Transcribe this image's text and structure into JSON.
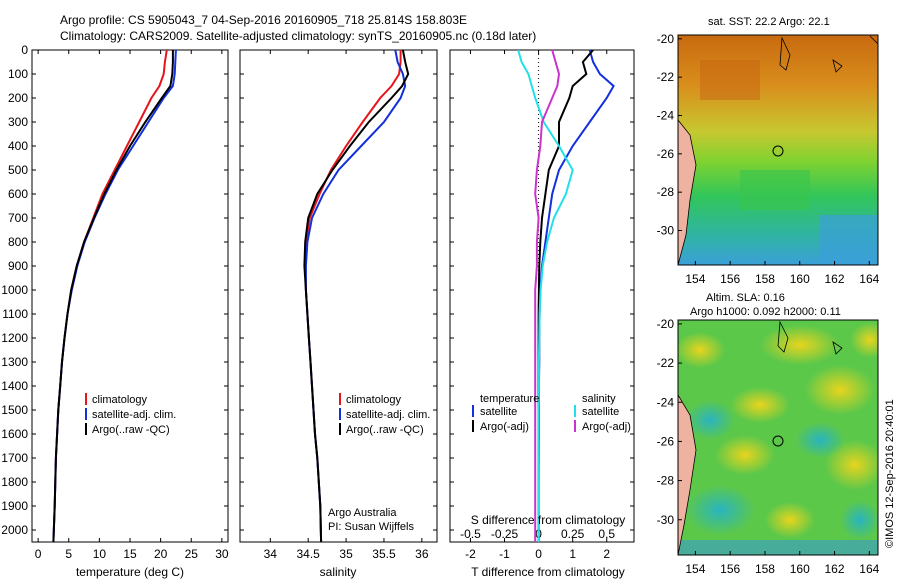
{
  "header": {
    "line1": "Argo profile: CS 5905043_7 04-Sep-2016 20160905_718 25.814S 158.803E",
    "line2": "Climatology: CARS2009. Satellite-adjusted climatology: synTS_20160905.nc (0.18d later)"
  },
  "colors": {
    "climatology": "#e8141b",
    "satellite": "#1230dc",
    "argo": "#000000",
    "sat_salinity": "#21e0e8",
    "argo_salinity": "#cc32cc"
  },
  "credits": {
    "org": "Argo Australia",
    "pi": "PI: Susan Wijffels",
    "stamp": "©IMOS 12-Sep-2016 20:40:01"
  },
  "chart_data": [
    {
      "type": "line",
      "id": "temperature",
      "xlabel": "temperature (deg C)",
      "ylabel": "",
      "xlim": [
        -1,
        31
      ],
      "ylim": [
        2050,
        0
      ],
      "xticks": [
        "0",
        "5",
        "10",
        "15",
        "20",
        "25",
        "30"
      ],
      "yticks": [
        "0",
        "100",
        "200",
        "300",
        "400",
        "500",
        "600",
        "700",
        "800",
        "900",
        "1000",
        "1100",
        "1200",
        "1300",
        "1400",
        "1500",
        "1600",
        "1700",
        "1800",
        "1900",
        "2000"
      ],
      "legend": [
        "climatology",
        "satellite-adj. clim.",
        "Argo(..raw -QC)"
      ],
      "series": [
        {
          "name": "climatology",
          "color": "#e8141b",
          "x": [
            21,
            20.7,
            20.5,
            19.8,
            18.5,
            16.5,
            14.5,
            12.5,
            10.5,
            9,
            7.5,
            6.3,
            5.4,
            4.8,
            4.3,
            3.9,
            3.6,
            3.3,
            3.1,
            2.9,
            2.7,
            2.5
          ],
          "y": [
            0,
            50,
            100,
            150,
            200,
            300,
            400,
            500,
            600,
            700,
            800,
            900,
            1000,
            1100,
            1200,
            1300,
            1400,
            1500,
            1600,
            1700,
            1900,
            2050
          ]
        },
        {
          "name": "satellite-adj. clim.",
          "color": "#1230dc",
          "x": [
            22.5,
            22.4,
            22.3,
            22,
            20.5,
            18,
            15.5,
            13,
            11,
            9.2,
            7.6,
            6.4,
            5.5,
            4.8,
            4.3,
            3.9,
            3.6,
            3.3,
            3.1,
            2.9,
            2.7,
            2.5
          ],
          "y": [
            0,
            50,
            100,
            150,
            200,
            300,
            400,
            500,
            600,
            700,
            800,
            900,
            1000,
            1100,
            1200,
            1300,
            1400,
            1500,
            1600,
            1700,
            1900,
            2050
          ]
        },
        {
          "name": "Argo(..raw -QC)",
          "color": "#000000",
          "x": [
            22,
            22,
            21.9,
            21.6,
            20.2,
            17.5,
            15,
            12.8,
            10.8,
            9.1,
            7.5,
            6.3,
            5.4,
            4.8,
            4.3,
            3.9,
            3.6,
            3.3,
            3.1,
            2.9,
            2.7,
            2.5
          ],
          "y": [
            0,
            50,
            100,
            150,
            200,
            300,
            400,
            500,
            600,
            700,
            800,
            900,
            1000,
            1100,
            1200,
            1300,
            1400,
            1500,
            1600,
            1700,
            1900,
            2050
          ]
        }
      ]
    },
    {
      "type": "line",
      "id": "salinity",
      "xlabel": "salinity",
      "ylabel": "",
      "xlim": [
        33.6,
        36.2
      ],
      "ylim": [
        2050,
        0
      ],
      "xticks": [
        "34",
        "34.5",
        "35",
        "35.5",
        "36"
      ],
      "legend": [
        "climatology",
        "satellite-adj. clim.",
        "Argo(..raw -QC)"
      ],
      "series": [
        {
          "name": "climatology",
          "color": "#e8141b",
          "x": [
            35.72,
            35.72,
            35.7,
            35.6,
            35.45,
            35.22,
            35,
            34.8,
            34.65,
            34.52,
            34.47,
            34.46,
            34.47,
            34.49,
            34.51,
            34.53,
            34.55,
            34.57,
            34.59,
            34.62,
            34.64,
            34.66,
            34.67
          ],
          "y": [
            0,
            50,
            100,
            150,
            200,
            300,
            400,
            500,
            600,
            700,
            800,
            900,
            1000,
            1100,
            1200,
            1300,
            1400,
            1500,
            1600,
            1700,
            1800,
            1900,
            2050
          ]
        },
        {
          "name": "satellite-adj. clim.",
          "color": "#1230dc",
          "x": [
            35.65,
            35.68,
            35.75,
            35.78,
            35.72,
            35.5,
            35.2,
            34.9,
            34.7,
            34.55,
            34.49,
            34.47,
            34.47,
            34.49,
            34.51,
            34.53,
            34.55,
            34.57,
            34.59,
            34.62,
            34.64,
            34.66,
            34.67
          ],
          "y": [
            0,
            50,
            100,
            150,
            200,
            300,
            400,
            500,
            600,
            700,
            800,
            900,
            1000,
            1100,
            1200,
            1300,
            1400,
            1500,
            1600,
            1700,
            1800,
            1900,
            2050
          ]
        },
        {
          "name": "Argo(..raw -QC)",
          "color": "#000000",
          "x": [
            35.75,
            35.78,
            35.82,
            35.74,
            35.6,
            35.3,
            35.05,
            34.82,
            34.62,
            34.5,
            34.46,
            34.45,
            34.47,
            34.49,
            34.51,
            34.53,
            34.55,
            34.57,
            34.59,
            34.62,
            34.64,
            34.66,
            34.67
          ],
          "y": [
            0,
            50,
            100,
            150,
            200,
            300,
            400,
            500,
            600,
            700,
            800,
            900,
            1000,
            1100,
            1200,
            1300,
            1400,
            1500,
            1600,
            1700,
            1800,
            1900,
            2050
          ]
        }
      ]
    },
    {
      "type": "line",
      "id": "differences",
      "xlabel": "T difference from climatology",
      "xlabel2": "S difference from climatology",
      "xlim": [
        -2.6,
        2.8
      ],
      "ylim": [
        2050,
        0
      ],
      "xticks": [
        "-2",
        "-1",
        "0",
        "1",
        "2"
      ],
      "xticks_top": [
        "-0.5",
        "-0.25",
        "0",
        "0.25",
        "0.5"
      ],
      "legend_title_left": "temperature",
      "legend_title_right": "salinity",
      "legend": [
        "satellite",
        "Argo(-adj)",
        "satellite",
        "Argo(-adj)"
      ],
      "series": [
        {
          "name": "satellite",
          "group": "temperature",
          "color": "#1230dc",
          "x": [
            1.5,
            1.6,
            1.8,
            2.2,
            2.0,
            1.5,
            1.0,
            0.6,
            0.4,
            0.3,
            0.2,
            0.1,
            0.05,
            0.03,
            0.02,
            0.02,
            0.01,
            0.01,
            0.01,
            0,
            0
          ],
          "y": [
            0,
            50,
            100,
            150,
            200,
            300,
            400,
            500,
            600,
            700,
            800,
            900,
            1000,
            1100,
            1200,
            1300,
            1400,
            1500,
            1600,
            1800,
            2050
          ]
        },
        {
          "name": "Argo(-adj)",
          "group": "temperature",
          "color": "#000000",
          "x": [
            1.6,
            1.3,
            1.4,
            1.0,
            0.9,
            0.6,
            0.6,
            0.3,
            0.2,
            0.1,
            0.05,
            0.02,
            0.01,
            0,
            0,
            0,
            0,
            0,
            0,
            0,
            0
          ],
          "y": [
            0,
            50,
            100,
            150,
            200,
            300,
            400,
            500,
            600,
            700,
            800,
            900,
            1000,
            1100,
            1200,
            1300,
            1400,
            1500,
            1600,
            1800,
            2050
          ]
        },
        {
          "name": "satellite",
          "group": "salinity",
          "color": "#21e0e8",
          "x": [
            -0.6,
            -0.5,
            -0.3,
            -0.2,
            -0.1,
            0.15,
            0.6,
            1.0,
            0.8,
            0.45,
            0.25,
            0.12,
            0.06,
            0.03,
            0.02,
            0.01,
            0.01,
            0,
            0,
            0,
            0
          ],
          "y": [
            0,
            50,
            100,
            150,
            200,
            300,
            400,
            500,
            600,
            700,
            800,
            900,
            1000,
            1100,
            1200,
            1300,
            1400,
            1500,
            1600,
            1800,
            2050
          ]
        },
        {
          "name": "Argo(-adj)",
          "group": "salinity",
          "color": "#cc32cc",
          "x": [
            0.4,
            0.5,
            0.6,
            0.55,
            0.4,
            0.1,
            0.05,
            -0.05,
            -0.1,
            0,
            -0.05,
            -0.05,
            -0.1,
            -0.1,
            -0.1,
            -0.1,
            -0.1,
            -0.1,
            -0.1,
            -0.1,
            -0.1
          ],
          "y": [
            0,
            50,
            100,
            150,
            200,
            300,
            400,
            500,
            600,
            700,
            800,
            900,
            1000,
            1100,
            1200,
            1300,
            1400,
            1500,
            1600,
            1800,
            2050
          ]
        }
      ]
    },
    {
      "type": "heatmap",
      "id": "sst_map",
      "title": "sat. SST: 22.2 Argo: 22.1",
      "xlim": [
        153,
        164.5
      ],
      "ylim": [
        -31.8,
        -19.8
      ],
      "xticks": [
        "154",
        "156",
        "158",
        "160",
        "162",
        "164"
      ],
      "yticks": [
        "-20",
        "-22",
        "-24",
        "-26",
        "-28",
        "-30"
      ],
      "marker": {
        "lon": 158.8,
        "lat": -25.8
      }
    },
    {
      "type": "heatmap",
      "id": "sla_map",
      "title": "Altim. SLA: 0.16",
      "subtitle": "Argo h1000: 0.092 h2000: 0.11",
      "xlim": [
        153,
        164.5
      ],
      "ylim": [
        -31.8,
        -19.8
      ],
      "xticks": [
        "154",
        "156",
        "158",
        "160",
        "162",
        "164"
      ],
      "yticks": [
        "-20",
        "-22",
        "-24",
        "-26",
        "-28",
        "-30"
      ],
      "marker": {
        "lon": 158.8,
        "lat": -25.8
      }
    }
  ]
}
